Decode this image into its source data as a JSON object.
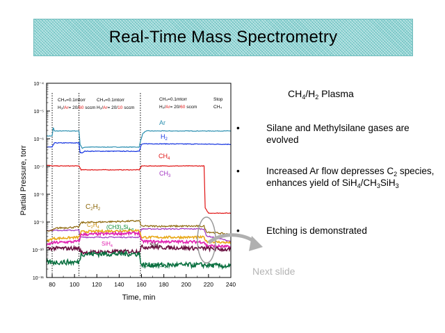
{
  "title": "Real-Time Mass Spectrometry",
  "chart_data": {
    "type": "line",
    "xlabel": "Time, min",
    "ylabel": "Partial Pressure, torr",
    "xlim": [
      75,
      240
    ],
    "ylim_exponent": [
      -11,
      -4
    ],
    "y_scale": "log",
    "x_ticks": [
      80,
      100,
      120,
      140,
      160,
      180,
      200,
      220,
      240
    ],
    "y_ticks": [
      {
        "exp": -4,
        "label": "10⁻⁴"
      },
      {
        "exp": -5,
        "label": "10⁻⁵"
      },
      {
        "exp": -6,
        "label": "10⁻⁶"
      },
      {
        "exp": -7,
        "label": "10⁻⁷"
      },
      {
        "exp": -8,
        "label": "10⁻⁸"
      },
      {
        "exp": -9,
        "label": "10⁻⁹"
      },
      {
        "exp": -10,
        "label": "10⁻¹⁰"
      },
      {
        "exp": -11,
        "label": "10⁻¹¹"
      }
    ],
    "event_lines": [
      80,
      104,
      159
    ],
    "series": [
      {
        "name": "Ar",
        "color": "#2a8fb0",
        "noise": 0.01,
        "points": [
          [
            75,
            -5.9
          ],
          [
            80,
            -5.9
          ],
          [
            81,
            -5.6
          ],
          [
            82,
            -5.72
          ],
          [
            104,
            -5.72
          ],
          [
            105,
            -6.2
          ],
          [
            107,
            -6.35
          ],
          [
            109,
            -6.3
          ],
          [
            158,
            -6.3
          ],
          [
            159,
            -6.1
          ],
          [
            161,
            -5.82
          ],
          [
            164,
            -5.72
          ],
          [
            240,
            -5.72
          ]
        ]
      },
      {
        "name": "H2",
        "color": "#1030e0",
        "noise": 0.012,
        "points": [
          [
            75,
            -6.3
          ],
          [
            80,
            -6.3
          ],
          [
            82,
            -6.15
          ],
          [
            104,
            -6.15
          ],
          [
            105,
            -6.5
          ],
          [
            107,
            -6.5
          ],
          [
            109,
            -6.45
          ],
          [
            158,
            -6.45
          ],
          [
            160,
            -6.2
          ],
          [
            164,
            -6.18
          ],
          [
            240,
            -6.2
          ]
        ]
      },
      {
        "name": "CH4",
        "color": "#e01010",
        "noise": 0.01,
        "points": [
          [
            75,
            -6.95
          ],
          [
            80,
            -6.98
          ],
          [
            104,
            -6.98
          ],
          [
            106,
            -7.12
          ],
          [
            158,
            -7.12
          ],
          [
            160,
            -6.98
          ],
          [
            216,
            -6.98
          ],
          [
            217,
            -8.5
          ],
          [
            220,
            -8.68
          ],
          [
            240,
            -8.68
          ]
        ]
      },
      {
        "name": "CH3",
        "color": "#a030c0",
        "noise": 0.02,
        "points": [
          [
            75,
            -9.3
          ],
          [
            80,
            -9.3
          ],
          [
            104,
            -9.3
          ],
          [
            105,
            -9.55
          ],
          [
            158,
            -9.55
          ],
          [
            160,
            -9.25
          ],
          [
            216,
            -9.25
          ],
          [
            218,
            -9.5
          ],
          [
            230,
            -9.6
          ],
          [
            240,
            -9.7
          ]
        ]
      },
      {
        "name": "C2H2",
        "color": "#8b6508",
        "noise": 0.03,
        "points": [
          [
            75,
            -9.35
          ],
          [
            80,
            -9.3
          ],
          [
            84,
            -9.22
          ],
          [
            104,
            -9.18
          ],
          [
            106,
            -9.02
          ],
          [
            158,
            -8.96
          ],
          [
            160,
            -9.15
          ],
          [
            216,
            -9.15
          ],
          [
            218,
            -9.35
          ],
          [
            240,
            -9.45
          ]
        ]
      },
      {
        "name": "C2H4",
        "color": "#e8a818",
        "noise": 0.04,
        "points": [
          [
            75,
            -9.7
          ],
          [
            80,
            -9.6
          ],
          [
            104,
            -9.55
          ],
          [
            106,
            -9.35
          ],
          [
            158,
            -9.3
          ],
          [
            160,
            -9.55
          ],
          [
            216,
            -9.55
          ],
          [
            218,
            -9.7
          ],
          [
            240,
            -9.75
          ]
        ]
      },
      {
        "name": "(CH3)nSi4-n",
        "color": "#e020b0",
        "noise": 0.05,
        "points": [
          [
            75,
            -9.85
          ],
          [
            80,
            -9.75
          ],
          [
            104,
            -9.7
          ],
          [
            106,
            -9.45
          ],
          [
            158,
            -9.4
          ],
          [
            160,
            -9.7
          ],
          [
            216,
            -9.72
          ],
          [
            218,
            -9.85
          ],
          [
            240,
            -9.9
          ]
        ]
      },
      {
        "name": "SiH4",
        "color": "#6a1040",
        "noise": 0.07,
        "points": [
          [
            75,
            -9.95
          ],
          [
            80,
            -9.95
          ],
          [
            104,
            -9.95
          ],
          [
            106,
            -10.1
          ],
          [
            158,
            -10.05
          ],
          [
            160,
            -9.9
          ],
          [
            216,
            -9.95
          ],
          [
            240,
            -10.0
          ]
        ]
      },
      {
        "name": "(CH3)nSi4-n",
        "color": "#0a7040",
        "noise": 0.09,
        "points": [
          [
            75,
            -10.45
          ],
          [
            80,
            -10.45
          ],
          [
            104,
            -10.45
          ],
          [
            106,
            -10.15
          ],
          [
            158,
            -10.15
          ],
          [
            160,
            -10.55
          ],
          [
            216,
            -10.55
          ],
          [
            240,
            -10.6
          ]
        ]
      }
    ]
  },
  "labels": {
    "ar": "Ar",
    "h2": "H",
    "h2_sub": "2",
    "ch4": "CH",
    "ch4_sub": "4",
    "ch3": "CH",
    "ch3_sub": "3",
    "c2h2_a": "C",
    "c2h2_sub1": "2",
    "c2h2_b": "H",
    "c2h2_sub2": "2",
    "c2h4_a": "C",
    "c2h4_sub1": "2",
    "c2h4_b": "H",
    "c2h4_sub2": "4",
    "ch3nsi_top": "(CH3)",
    "ch3nsi_n": "n",
    "ch3nsi_si": "Si",
    "ch3nsi_4n": "4-n",
    "sih4_left": "SiH",
    "sih4_left_sub": "4",
    "sih4_right": "SiH",
    "sih4_right_sub": "4",
    "ch3nsi_bottom": "(CH3)",
    "ch3nsi_bottom_n": "n",
    "ch3nsi_bottom_si": "Si",
    "ch3nsi_bottom_4n": "4-n"
  },
  "conditions": {
    "c1_line1": "CH₄=0.1mtorr",
    "c1_h2": "H₂/",
    "c1_ar": "Ar",
    "c1_eq": "= 20/",
    "c1_flow": "60",
    "c1_unit": " sccm",
    "c2_line1": "CH₄=0.1mtorr",
    "c2_h2": "H₂/",
    "c2_ar": "Ar",
    "c2_eq": "= 20/",
    "c2_flow": "10",
    "c2_unit": " sccm",
    "c3_line1": "CH₄=0.1mtorr",
    "c3_h2": "H₂/",
    "c3_ar": "Ar",
    "c3_eq": "= 20/",
    "c3_flow": "60",
    "c3_unit": " sccm",
    "c4_line1": "Stop",
    "c4_line2": "CH₄"
  },
  "bullets": {
    "heading_a": "CH",
    "heading_sub1": "4",
    "heading_b": "/H",
    "heading_sub2": "2",
    "heading_c": " Plasma",
    "item1": "Silane and Methylsilane gases are evolved",
    "item2_a": "Increased Ar flow depresses C",
    "item2_sub": "2",
    "item2_b": " species, enhances yield of SiH",
    "item2_sub2": "4",
    "item2_c": "/CH",
    "item2_sub3": "3",
    "item2_d": "SiH",
    "item2_sub4": "3",
    "item3": "Etching is demonstrated",
    "dot": "•"
  },
  "next_slide": "Next slide",
  "colors": {
    "title_bg": "#8fd3d3",
    "accent_red": "#e01010",
    "next_slide_gray": "#b4b4b4"
  }
}
